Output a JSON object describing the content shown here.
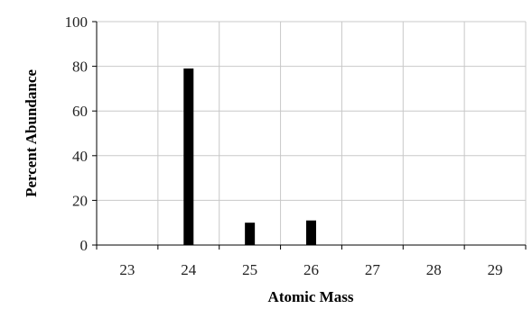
{
  "chart_data": {
    "type": "bar",
    "title": "",
    "xlabel": "Atomic Mass",
    "ylabel": "Percent Abundance",
    "categories": [
      "23",
      "24",
      "25",
      "26",
      "27",
      "28",
      "29"
    ],
    "values": [
      0,
      79,
      10,
      11,
      0,
      0,
      0
    ],
    "ylim": [
      0,
      100
    ],
    "yticks": [
      "0",
      "20",
      "40",
      "60",
      "80",
      "100"
    ],
    "grid": true,
    "legend": "none",
    "bar_color": "#000000",
    "grid_color": "#c8c8c8"
  }
}
